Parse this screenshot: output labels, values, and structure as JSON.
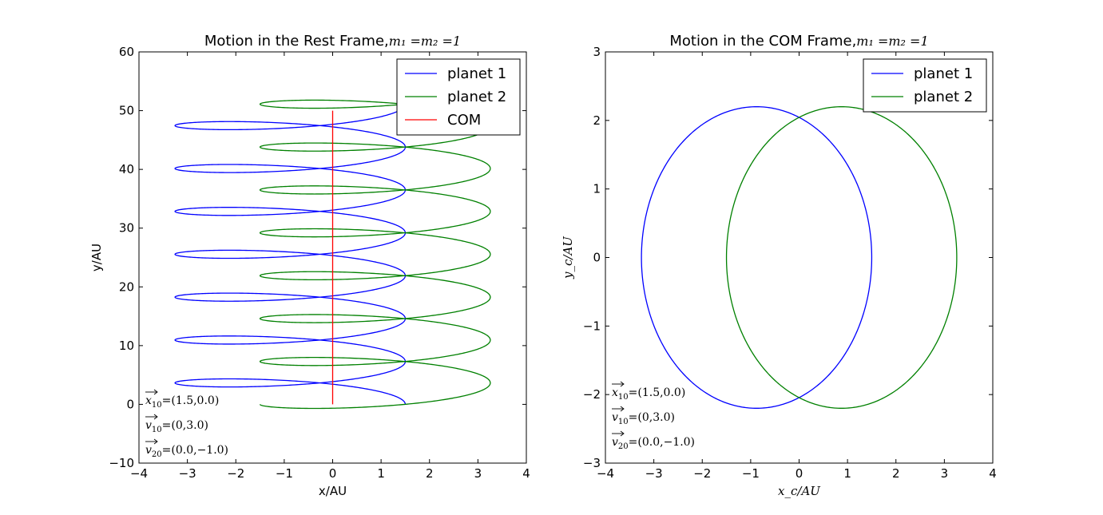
{
  "chart_data": [
    {
      "type": "line",
      "title": "Motion in the Rest Frame,",
      "title_math": "m₁ =m₂ =1",
      "xlabel": "x/AU",
      "ylabel": "y/AU",
      "xlim": [
        -4,
        4
      ],
      "ylim": [
        -10,
        60
      ],
      "xticks": [
        "−4",
        "−3",
        "−2",
        "−1",
        "0",
        "1",
        "2",
        "3",
        "4"
      ],
      "yticks": [
        "−10",
        "0",
        "10",
        "20",
        "30",
        "40",
        "50",
        "60"
      ],
      "grid": false,
      "legend_position": "top-right",
      "series": [
        {
          "name": "planet 1",
          "color": "#0000ff",
          "kind": "spiral",
          "x_center": -0.878,
          "x_amplitude": 2.378,
          "phase": 0,
          "t_range": [
            0,
            6.98
          ],
          "y_speed": 1.0,
          "y_offset": 0.0,
          "y_wobble": 1.0
        },
        {
          "name": "planet 2",
          "color": "#008000",
          "kind": "spiral",
          "x_center": 0.878,
          "x_amplitude": 2.378,
          "phase": 3.14159,
          "t_range": [
            0,
            7.6
          ],
          "y_speed": 1.0,
          "y_offset": 0.0,
          "y_wobble": -1.0
        },
        {
          "name": "COM",
          "color": "#ff0000",
          "kind": "line",
          "x": [
            0,
            0
          ],
          "y": [
            0,
            50
          ]
        }
      ],
      "annotations": [
        {
          "vec": "x",
          "sub": "10",
          "value": "=(1.5,0.0)"
        },
        {
          "vec": "v",
          "sub": "10",
          "value": "=(0,3.0)"
        },
        {
          "vec": "v",
          "sub": "20",
          "value": "=(0.0,−1.0)"
        }
      ]
    },
    {
      "type": "line",
      "title": "Motion in the COM Frame,",
      "title_math": "m₁ =m₂ =1",
      "xlabel": "x_c/AU",
      "ylabel": "y_c/AU",
      "xlim": [
        -4,
        4
      ],
      "ylim": [
        -3,
        3
      ],
      "xticks": [
        "−4",
        "−3",
        "−2",
        "−1",
        "0",
        "1",
        "2",
        "3",
        "4"
      ],
      "yticks": [
        "−3",
        "−2",
        "−1",
        "0",
        "1",
        "2",
        "3"
      ],
      "grid": false,
      "legend_position": "top-right",
      "series": [
        {
          "name": "planet 1",
          "color": "#0000ff",
          "kind": "ellipse",
          "cx": -0.878,
          "cy": 0,
          "rx": 2.378,
          "ry": 2.2
        },
        {
          "name": "planet 2",
          "color": "#008000",
          "kind": "ellipse",
          "cx": 0.878,
          "cy": 0,
          "rx": 2.378,
          "ry": 2.2
        }
      ],
      "annotations": [
        {
          "vec": "x",
          "sub": "10",
          "value": "=(1.5,0.0)"
        },
        {
          "vec": "v",
          "sub": "10",
          "value": "=(0,3.0)"
        },
        {
          "vec": "v",
          "sub": "20",
          "value": "=(0.0,−1.0)"
        }
      ]
    }
  ]
}
